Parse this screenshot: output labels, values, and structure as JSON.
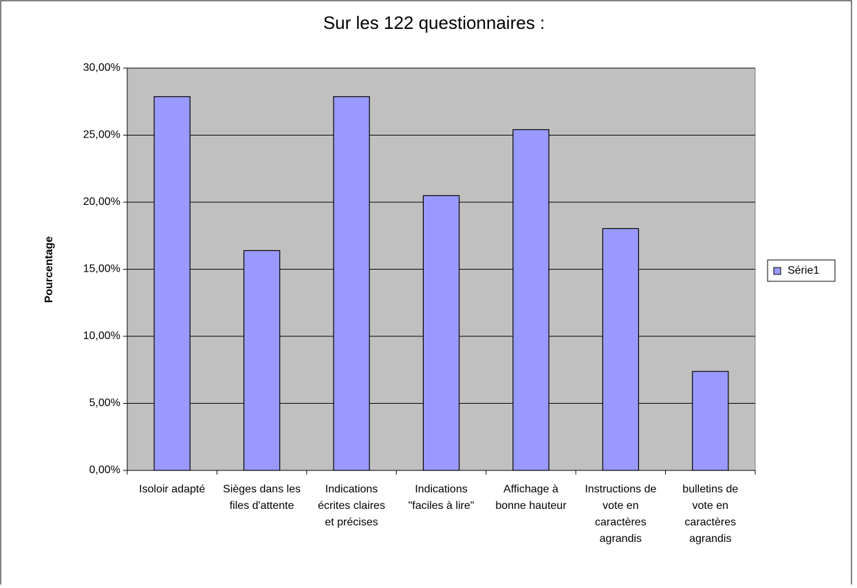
{
  "chart_data": {
    "type": "bar",
    "title": "Sur les 122 questionnaires :",
    "ylabel": "Pourcentage",
    "categories": [
      "Isoloir adapté",
      "Sièges dans les files d'attente",
      "Indications écrites claires et précises",
      "Indications \"faciles à lire\"",
      "Affichage à bonne hauteur",
      "Instructions de vote en caractères agrandis",
      "bulletins de vote en caractères agrandis"
    ],
    "series": [
      {
        "name": "Série1",
        "color": "#9999ff",
        "values": [
          27.87,
          16.39,
          27.87,
          20.49,
          25.41,
          18.03,
          7.38
        ]
      }
    ],
    "ylim": [
      0,
      30
    ],
    "yticks": [
      {
        "value": 0,
        "label": "0,00%"
      },
      {
        "value": 5,
        "label": "5,00%"
      },
      {
        "value": 10,
        "label": "10,00%"
      },
      {
        "value": 15,
        "label": "15,00%"
      },
      {
        "value": 20,
        "label": "20,00%"
      },
      {
        "value": 25,
        "label": "25,00%"
      },
      {
        "value": 30,
        "label": "30,00%"
      }
    ],
    "grid": true,
    "legend": "right"
  }
}
